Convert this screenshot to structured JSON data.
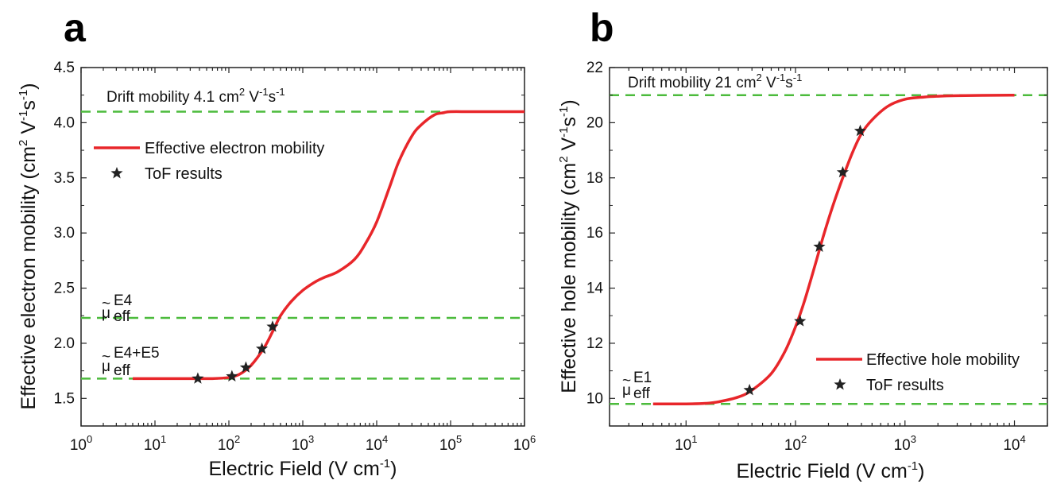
{
  "chart_data": [
    {
      "panel": "a",
      "type": "line",
      "x_scale": "log",
      "xlim": [
        1,
        1000000
      ],
      "ylim": [
        1.25,
        4.5
      ],
      "xlabel": "Electric Field (V cm",
      "xlabel_sup": "-1",
      "xlabel_end": ")",
      "ylabel": "Effective electron mobility (cm",
      "ylabel_sup1": "2",
      "ylabel_mid": " V",
      "ylabel_sup2": "-1",
      "ylabel_mid2": "s",
      "ylabel_sup3": "-1",
      "ylabel_end": ")",
      "x_ticks": [
        {
          "value": 1,
          "base": "10",
          "exp": "0"
        },
        {
          "value": 10,
          "base": "10",
          "exp": "1"
        },
        {
          "value": 100,
          "base": "10",
          "exp": "2"
        },
        {
          "value": 1000,
          "base": "10",
          "exp": "3"
        },
        {
          "value": 10000,
          "base": "10",
          "exp": "4"
        },
        {
          "value": 100000,
          "base": "10",
          "exp": "5"
        },
        {
          "value": 1000000,
          "base": "10",
          "exp": "6"
        }
      ],
      "y_ticks": [
        "1.5",
        "2.0",
        "2.5",
        "3.0",
        "3.5",
        "4.0",
        "4.5"
      ],
      "hlines": [
        4.1,
        2.23,
        1.68
      ],
      "series": [
        {
          "name": "Effective electron mobility",
          "kind": "line",
          "color": "#e8262a",
          "x": [
            5,
            10,
            30,
            60,
            100,
            140,
            200,
            300,
            400,
            500,
            700,
            1000,
            1500,
            2000,
            3000,
            5000,
            7000,
            10000,
            15000,
            20000,
            30000,
            40000,
            60000,
            80000,
            100000,
            200000,
            1000000
          ],
          "y": [
            1.68,
            1.68,
            1.68,
            1.68,
            1.69,
            1.72,
            1.8,
            1.96,
            2.12,
            2.25,
            2.38,
            2.48,
            2.56,
            2.6,
            2.65,
            2.76,
            2.9,
            3.1,
            3.42,
            3.65,
            3.88,
            3.98,
            4.07,
            4.09,
            4.1,
            4.1,
            4.1
          ]
        },
        {
          "name": "ToF results",
          "kind": "marker",
          "color": "#222222",
          "x": [
            38,
            110,
            170,
            280,
            390
          ],
          "y": [
            1.68,
            1.7,
            1.78,
            1.95,
            2.15
          ]
        }
      ],
      "annotations": {
        "drift": "Drift mobility 4.1 cm",
        "drift_sup1": "2",
        "drift_mid": " V",
        "drift_sup2": "-1",
        "drift_mid2": "s",
        "drift_sup3": "-1",
        "mu1_tilde": "~",
        "mu1": "μ",
        "mu1_sup": "E4",
        "mu1_sub": "eff",
        "mu2_tilde": "~",
        "mu2": "μ",
        "mu2_sup": "E4+E5",
        "mu2_sub": "eff"
      }
    },
    {
      "panel": "b",
      "type": "line",
      "x_scale": "log",
      "xlim": [
        2,
        20000
      ],
      "ylim": [
        9,
        22
      ],
      "xlabel": "Electric Field (V cm",
      "xlabel_sup": "-1",
      "xlabel_end": ")",
      "ylabel": "Effective hole mobility (cm",
      "ylabel_sup1": "2",
      "ylabel_mid": " V",
      "ylabel_sup2": "-1",
      "ylabel_mid2": "s",
      "ylabel_sup3": "-1",
      "ylabel_end": ")",
      "x_ticks": [
        {
          "value": 10,
          "base": "10",
          "exp": "1"
        },
        {
          "value": 100,
          "base": "10",
          "exp": "2"
        },
        {
          "value": 1000,
          "base": "10",
          "exp": "3"
        },
        {
          "value": 10000,
          "base": "10",
          "exp": "4"
        }
      ],
      "y_ticks": [
        "10",
        "12",
        "14",
        "16",
        "18",
        "20",
        "22"
      ],
      "hlines": [
        21,
        9.8
      ],
      "series": [
        {
          "name": "Effective hole mobility",
          "kind": "line",
          "color": "#e8262a",
          "x": [
            5,
            10,
            15,
            20,
            30,
            40,
            60,
            80,
            100,
            120,
            150,
            180,
            220,
            270,
            330,
            400,
            500,
            700,
            1000,
            1500,
            2000,
            3000,
            5000,
            10000
          ],
          "y": [
            9.8,
            9.8,
            9.82,
            9.88,
            10.05,
            10.3,
            10.9,
            11.7,
            12.6,
            13.5,
            14.8,
            15.9,
            17.0,
            18.0,
            18.9,
            19.6,
            20.1,
            20.6,
            20.85,
            20.93,
            20.96,
            20.98,
            20.99,
            21.0
          ]
        },
        {
          "name": "ToF results",
          "kind": "marker",
          "color": "#222222",
          "x": [
            38,
            110,
            165,
            270,
            390
          ],
          "y": [
            10.3,
            12.8,
            15.5,
            18.2,
            19.7
          ]
        }
      ],
      "annotations": {
        "drift": "Drift mobility 21 cm",
        "drift_sup1": "2",
        "drift_mid": " V",
        "drift_sup2": "-1",
        "drift_mid2": "s",
        "drift_sup3": "-1",
        "mu1_tilde": "~",
        "mu1": "μ",
        "mu1_sup": "E1",
        "mu1_sub": "eff"
      }
    }
  ],
  "colors": {
    "curve": "#e8262a",
    "dashed": "#4cbb3c",
    "star": "#222222",
    "frame": "#222222"
  }
}
